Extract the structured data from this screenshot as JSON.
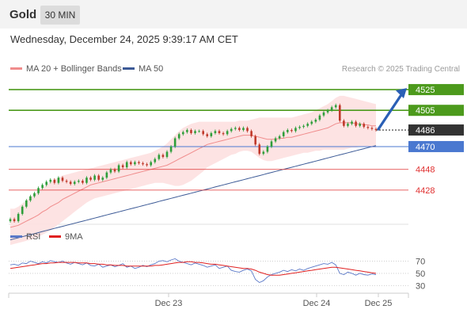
{
  "header": {
    "title": "Gold",
    "timeframe": "30 MIN"
  },
  "datetime": "Wednesday, December 24, 2025 9:39:17 AM CET",
  "legend": {
    "ma20_label": "MA 20 + Bollinger Bands",
    "ma50_label": "MA 50",
    "credit": "Research © 2025 Trading Central"
  },
  "rsi_legend": {
    "rsi_label": "RSI",
    "ma_label": "9MA"
  },
  "colors": {
    "ma20": "#f08c8c",
    "ma50": "#3c5a96",
    "up": "#2e9e3a",
    "down": "#c0392b",
    "band": "#fde0e0",
    "rsi": "#5a78c8",
    "rsi_ma": "#e02020",
    "resistance": "#4c9a1c",
    "support": "#e03030",
    "pivot": "#4a78d0"
  },
  "chart_data": [
    {
      "type": "candlestick",
      "title": "Gold",
      "timeframe": "30 MIN",
      "x_ticks": [
        "Dec 23",
        "Dec 24",
        "Dec 25"
      ],
      "y_range": [
        4395,
        4535
      ],
      "last_price": 4486,
      "levels": [
        {
          "value": 4525,
          "label": "4525",
          "kind": "resistance"
        },
        {
          "value": 4505,
          "label": "4505",
          "kind": "resistance"
        },
        {
          "value": 4486,
          "label": "4486",
          "kind": "last"
        },
        {
          "value": 4470,
          "label": "4470",
          "kind": "pivot"
        },
        {
          "value": 4448,
          "label": "4448",
          "kind": "support"
        },
        {
          "value": 4428,
          "label": "4428",
          "kind": "support"
        }
      ],
      "forecast": {
        "from": 4486,
        "to": 4525,
        "direction": "up"
      },
      "close": [
        4400,
        4398,
        4405,
        4412,
        4418,
        4422,
        4425,
        4430,
        4433,
        4436,
        4438,
        4435,
        4440,
        4437,
        4436,
        4434,
        4436,
        4437,
        4435,
        4440,
        4438,
        4442,
        4438,
        4440,
        4445,
        4448,
        4446,
        4452,
        4450,
        4455,
        4453,
        4455,
        4454,
        4453,
        4452,
        4455,
        4458,
        4462,
        4460,
        4465,
        4470,
        4478,
        4482,
        4484,
        4486,
        4483,
        4485,
        4485,
        4482,
        4480,
        4483,
        4485,
        4483,
        4482,
        4485,
        4487,
        4488,
        4486,
        4488,
        4485,
        4480,
        4472,
        4463,
        4465,
        4470,
        4475,
        4478,
        4480,
        4484,
        4486,
        4485,
        4488,
        4489,
        4490,
        4492,
        4494,
        4496,
        4500,
        4503,
        4505,
        4508,
        4510,
        4495,
        4490,
        4492,
        4494,
        4490,
        4492,
        4489,
        4488,
        4487,
        4486
      ],
      "ma20": [
        4392,
        4393,
        4394,
        4396,
        4398,
        4400,
        4402,
        4404,
        4407,
        4409,
        4412,
        4414,
        4416,
        4419,
        4421,
        4423,
        4425,
        4427,
        4429,
        4431,
        4433,
        4434,
        4435,
        4436,
        4437,
        4438,
        4439,
        4440,
        4441,
        4442,
        4443,
        4444,
        4445,
        4446,
        4447,
        4448,
        4449,
        4450,
        4451,
        4452,
        4454,
        4456,
        4458,
        4460,
        4462,
        4464,
        4466,
        4468,
        4470,
        4472,
        4473,
        4474,
        4475,
        4476,
        4477,
        4478,
        4479,
        4480,
        4481,
        4481,
        4481,
        4480,
        4479,
        4478,
        4477,
        4477,
        4477,
        4478,
        4478,
        4479,
        4479,
        4480,
        4481,
        4482,
        4483,
        4484,
        4485,
        4486,
        4487,
        4488,
        4490,
        4492,
        4493,
        4493,
        4493,
        4493,
        4492,
        4492,
        4491,
        4491,
        4490,
        4490
      ],
      "bollinger_upper": [
        4410,
        4410,
        4412,
        4415,
        4418,
        4421,
        4424,
        4427,
        4430,
        4433,
        4436,
        4438,
        4440,
        4442,
        4443,
        4444,
        4445,
        4446,
        4447,
        4448,
        4449,
        4450,
        4451,
        4452,
        4453,
        4454,
        4455,
        4456,
        4457,
        4458,
        4459,
        4460,
        4461,
        4462,
        4463,
        4464,
        4466,
        4468,
        4470,
        4473,
        4477,
        4481,
        4485,
        4488,
        4490,
        4492,
        4493,
        4494,
        4494,
        4494,
        4494,
        4494,
        4494,
        4494,
        4494,
        4494,
        4494,
        4495,
        4495,
        4495,
        4496,
        4497,
        4498,
        4498,
        4498,
        4498,
        4498,
        4498,
        4498,
        4498,
        4498,
        4499,
        4500,
        4501,
        4502,
        4503,
        4505,
        4507,
        4509,
        4511,
        4514,
        4517,
        4519,
        4519,
        4518,
        4517,
        4516,
        4515,
        4514,
        4513,
        4512,
        4511
      ],
      "bollinger_lower": [
        4375,
        4376,
        4377,
        4378,
        4379,
        4380,
        4381,
        4383,
        4385,
        4387,
        4389,
        4392,
        4395,
        4398,
        4401,
        4404,
        4407,
        4410,
        4413,
        4416,
        4418,
        4420,
        4421,
        4422,
        4423,
        4424,
        4425,
        4426,
        4427,
        4428,
        4429,
        4430,
        4431,
        4432,
        4433,
        4434,
        4435,
        4435,
        4435,
        4434,
        4433,
        4432,
        4432,
        4433,
        4435,
        4437,
        4440,
        4443,
        4446,
        4450,
        4452,
        4454,
        4456,
        4458,
        4460,
        4462,
        4463,
        4465,
        4466,
        4466,
        4465,
        4462,
        4459,
        4457,
        4456,
        4456,
        4457,
        4458,
        4459,
        4460,
        4461,
        4462,
        4463,
        4464,
        4464,
        4465,
        4466,
        4466,
        4467,
        4467,
        4467,
        4467,
        4467,
        4467,
        4468,
        4469,
        4469,
        4470,
        4470,
        4470,
        4469,
        4469
      ],
      "ma50": [
        4380,
        4381,
        4382,
        4383,
        4384,
        4385,
        4386,
        4387,
        4388,
        4389,
        4390,
        4391,
        4392,
        4393,
        4394,
        4395,
        4396,
        4397,
        4398,
        4399,
        4400,
        4401,
        4402,
        4403,
        4404,
        4405,
        4406,
        4407,
        4408,
        4409,
        4410,
        4411,
        4412,
        4413,
        4414,
        4415,
        4416,
        4417,
        4418,
        4419,
        4420,
        4421,
        4422,
        4423,
        4424,
        4425,
        4426,
        4427,
        4428,
        4429,
        4430,
        4431,
        4432,
        4433,
        4434,
        4435,
        4436,
        4437,
        4438,
        4439,
        4440,
        4441,
        4442,
        4443,
        4444,
        4445,
        4446,
        4447,
        4448,
        4449,
        4450,
        4451,
        4452,
        4453,
        4454,
        4455,
        4456,
        4457,
        4458,
        4459,
        4460,
        4461,
        4462,
        4463,
        4464,
        4465,
        4466,
        4467,
        4468,
        4469,
        4470,
        4471
      ]
    },
    {
      "type": "line",
      "title": "RSI",
      "y_ticks": [
        70,
        50,
        30
      ],
      "y_range": [
        20,
        85
      ],
      "series": [
        {
          "name": "RSI",
          "values": [
            64,
            65,
            63,
            67,
            66,
            70,
            68,
            66,
            69,
            67,
            71,
            69,
            68,
            70,
            67,
            65,
            68,
            66,
            64,
            67,
            63,
            62,
            65,
            60,
            62,
            64,
            61,
            63,
            66,
            60,
            62,
            58,
            60,
            63,
            61,
            64,
            66,
            70,
            71,
            69,
            72,
            74,
            70,
            68,
            66,
            64,
            67,
            65,
            63,
            60,
            62,
            64,
            58,
            60,
            62,
            55,
            53,
            52,
            55,
            57,
            54,
            40,
            35,
            38,
            44,
            48,
            50,
            52,
            55,
            53,
            56,
            54,
            57,
            55,
            58,
            60,
            62,
            64,
            66,
            65,
            68,
            64,
            50,
            48,
            52,
            50,
            47,
            50,
            48,
            47,
            49,
            48
          ]
        },
        {
          "name": "9MA",
          "values": [
            58,
            59,
            60,
            61,
            62,
            63,
            64,
            65,
            66,
            66,
            67,
            67,
            68,
            68,
            68,
            68,
            68,
            67,
            67,
            67,
            66,
            66,
            65,
            65,
            64,
            64,
            63,
            63,
            63,
            62,
            62,
            62,
            62,
            62,
            62,
            62,
            63,
            63,
            64,
            65,
            66,
            67,
            68,
            68,
            69,
            69,
            68,
            68,
            67,
            66,
            65,
            65,
            64,
            63,
            62,
            61,
            60,
            59,
            58,
            58,
            57,
            55,
            52,
            50,
            48,
            47,
            47,
            47,
            48,
            49,
            50,
            51,
            52,
            53,
            54,
            55,
            56,
            57,
            58,
            59,
            60,
            60,
            59,
            58,
            57,
            56,
            55,
            54,
            53,
            52,
            51,
            50
          ]
        }
      ]
    }
  ]
}
